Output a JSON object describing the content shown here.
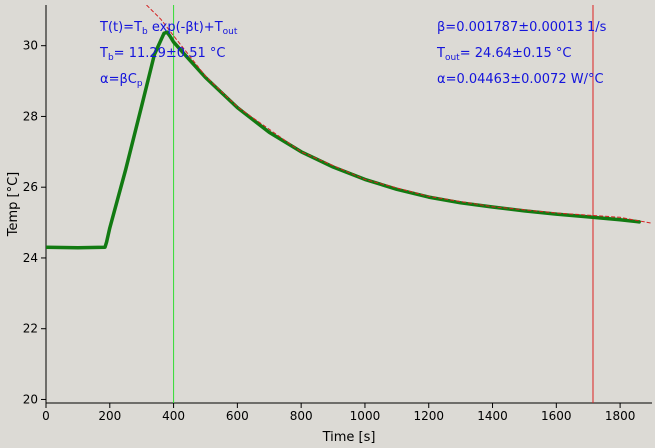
{
  "colors": {
    "background": "#dcdad5",
    "data": "#127a12",
    "fit": "#d42020",
    "marker_left": "#33dd33",
    "marker_right": "#dd2222",
    "annotation": "#1414dc"
  },
  "annotations": {
    "model": {
      "a": "T(t)=T",
      "b": "b",
      "c": " exp(-βt)+T",
      "d": "out"
    },
    "tb": {
      "a": "T",
      "b": "b",
      "c": "= 11.29±0.51 °C"
    },
    "alpha": {
      "a": "α=βC",
      "b": "p"
    },
    "beta": "β=0.001787±0.00013 1/s",
    "tout": {
      "a": "T",
      "b": "out",
      "c": "= 24.64±0.15 °C"
    },
    "alpha_val": "α=0.04463±0.0072 W/°C"
  },
  "chart_data": {
    "type": "line",
    "title": "",
    "xlabel": "Time [s]",
    "ylabel": "Temp [°C]",
    "xlim": [
      0,
      1900
    ],
    "ylim": [
      19.9,
      31.15
    ],
    "xticks": [
      0,
      200,
      400,
      600,
      800,
      1000,
      1200,
      1400,
      1600,
      1800
    ],
    "yticks": [
      20,
      22,
      24,
      26,
      28,
      30
    ],
    "grid": false,
    "series": [
      {
        "kind": "measured",
        "x": [
          0,
          100,
          185,
          190,
          200,
          250,
          300,
          340,
          370,
          380,
          390,
          400,
          450,
          500,
          600,
          700,
          800,
          900,
          1000,
          1100,
          1200,
          1300,
          1400,
          1500,
          1600,
          1700,
          1800,
          1860
        ],
        "y": [
          24.3,
          24.29,
          24.3,
          24.45,
          24.85,
          26.5,
          28.3,
          29.75,
          30.35,
          30.38,
          30.25,
          30.1,
          29.6,
          29.1,
          28.25,
          27.55,
          27.0,
          26.57,
          26.22,
          25.94,
          25.72,
          25.56,
          25.44,
          25.33,
          25.24,
          25.16,
          25.08,
          25.02
        ]
      },
      {
        "kind": "fit",
        "x": [
          315,
          360,
          400,
          500,
          600,
          800,
          1000,
          1200,
          1400,
          1600,
          1800,
          1900
        ],
        "y": [
          31.15,
          30.75,
          30.28,
          29.14,
          28.27,
          27.0,
          26.22,
          25.74,
          25.45,
          25.27,
          25.15,
          24.98
        ]
      }
    ],
    "vlines": [
      {
        "x": 400,
        "kind": "start"
      },
      {
        "x": 1715,
        "kind": "end"
      }
    ]
  }
}
